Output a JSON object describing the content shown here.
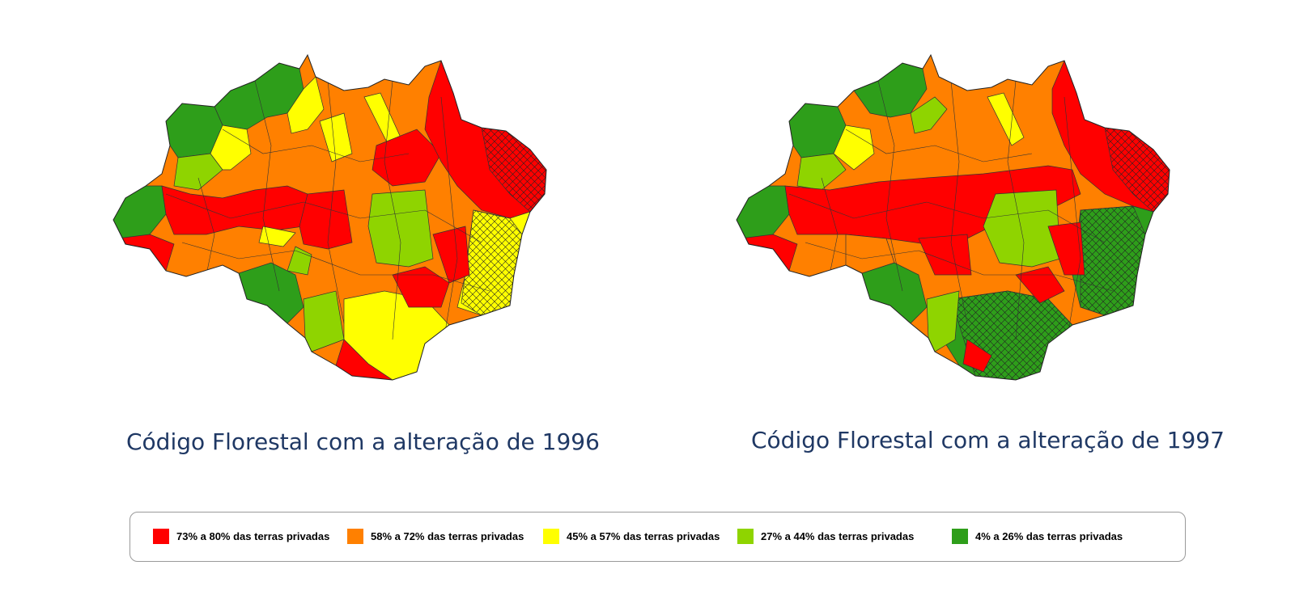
{
  "maps": [
    {
      "caption": "Código Florestal com a alteração de 1996",
      "regions_by_class": {
        "73% a 80% das terras privadas": "west-central belt, northeast coast cluster, southern tip",
        "58% a 72% das terras privadas": "north-west and central",
        "45% a 57% das terras privadas": "far east, north-central, south-central",
        "27% a 44% das terras privadas": "east-central block",
        "4% a 26% das terras privadas": "far north, far west, south-west"
      }
    },
    {
      "caption": "Código Florestal com a alteração de 1997",
      "regions_by_class": {
        "73% a 80% das terras privadas": "central belt, north-east",
        "58% a 72% das terras privadas": "north-west, south-west",
        "45% a 57% das terras privadas": "scattered north-central",
        "27% a 44% das terras privadas": "east-central block, scattered",
        "4% a 26% das terras privadas": "far east, south, far north"
      }
    }
  ],
  "legend": [
    {
      "label": "73% a 80% das terras privadas",
      "color": "#ff0000"
    },
    {
      "label": "58% a 72% das terras privadas",
      "color": "#ff8000"
    },
    {
      "label": "45% a 57% das terras privadas",
      "color": "#ffff00"
    },
    {
      "label": "27% a 44% das terras privadas",
      "color": "#8fd400"
    },
    {
      "label": "4% a 26% das terras privadas",
      "color": "#2e9e1a"
    }
  ]
}
